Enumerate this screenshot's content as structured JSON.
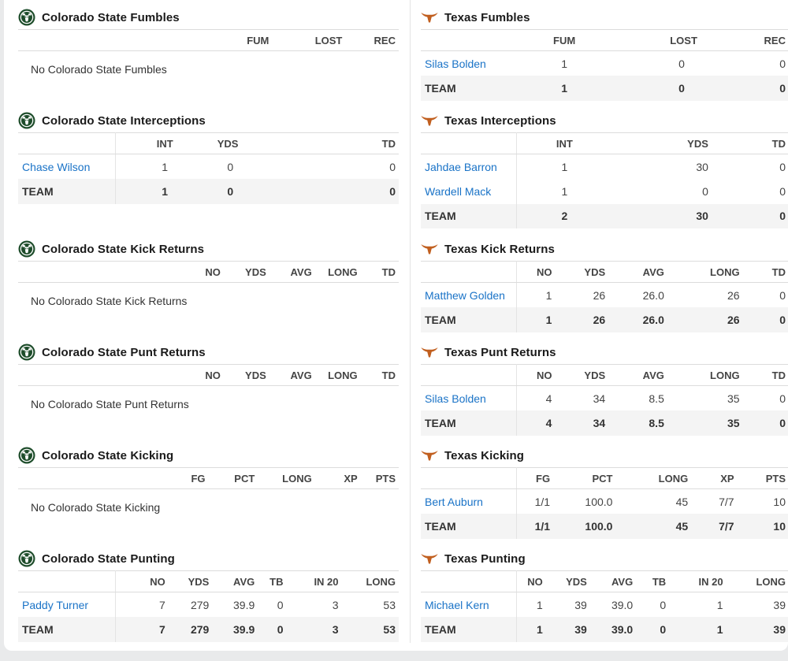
{
  "colorado": {
    "fumbles": {
      "title": "Colorado State Fumbles",
      "headers": [
        "FUM",
        "LOST",
        "REC"
      ],
      "empty": "No Colorado State Fumbles"
    },
    "interceptions": {
      "title": "Colorado State Interceptions",
      "headers": [
        "INT",
        "YDS",
        "TD"
      ],
      "rows": [
        {
          "name": "Chase Wilson",
          "vals": [
            "1",
            "0",
            "0"
          ]
        }
      ],
      "team": {
        "name": "TEAM",
        "vals": [
          "1",
          "0",
          "0"
        ]
      }
    },
    "kick_returns": {
      "title": "Colorado State Kick Returns",
      "headers": [
        "NO",
        "YDS",
        "AVG",
        "LONG",
        "TD"
      ],
      "empty": "No Colorado State Kick Returns"
    },
    "punt_returns": {
      "title": "Colorado State Punt Returns",
      "headers": [
        "NO",
        "YDS",
        "AVG",
        "LONG",
        "TD"
      ],
      "empty": "No Colorado State Punt Returns"
    },
    "kicking": {
      "title": "Colorado State Kicking",
      "headers": [
        "FG",
        "PCT",
        "LONG",
        "XP",
        "PTS"
      ],
      "empty": "No Colorado State Kicking"
    },
    "punting": {
      "title": "Colorado State Punting",
      "headers": [
        "NO",
        "YDS",
        "AVG",
        "TB",
        "IN 20",
        "LONG"
      ],
      "rows": [
        {
          "name": "Paddy Turner",
          "vals": [
            "7",
            "279",
            "39.9",
            "0",
            "3",
            "53"
          ]
        }
      ],
      "team": {
        "name": "TEAM",
        "vals": [
          "7",
          "279",
          "39.9",
          "0",
          "3",
          "53"
        ]
      }
    }
  },
  "texas": {
    "fumbles": {
      "title": "Texas Fumbles",
      "headers": [
        "FUM",
        "LOST",
        "REC"
      ],
      "rows": [
        {
          "name": "Silas Bolden",
          "vals": [
            "1",
            "0",
            "0"
          ]
        }
      ],
      "team": {
        "name": "TEAM",
        "vals": [
          "1",
          "0",
          "0"
        ]
      }
    },
    "interceptions": {
      "title": "Texas Interceptions",
      "headers": [
        "INT",
        "YDS",
        "TD"
      ],
      "rows": [
        {
          "name": "Jahdae Barron",
          "vals": [
            "1",
            "30",
            "0"
          ]
        },
        {
          "name": "Wardell Mack",
          "vals": [
            "1",
            "0",
            "0"
          ]
        }
      ],
      "team": {
        "name": "TEAM",
        "vals": [
          "2",
          "30",
          "0"
        ]
      }
    },
    "kick_returns": {
      "title": "Texas Kick Returns",
      "headers": [
        "NO",
        "YDS",
        "AVG",
        "LONG",
        "TD"
      ],
      "rows": [
        {
          "name": "Matthew Golden",
          "vals": [
            "1",
            "26",
            "26.0",
            "26",
            "0"
          ]
        }
      ],
      "team": {
        "name": "TEAM",
        "vals": [
          "1",
          "26",
          "26.0",
          "26",
          "0"
        ]
      }
    },
    "punt_returns": {
      "title": "Texas Punt Returns",
      "headers": [
        "NO",
        "YDS",
        "AVG",
        "LONG",
        "TD"
      ],
      "rows": [
        {
          "name": "Silas Bolden",
          "vals": [
            "4",
            "34",
            "8.5",
            "35",
            "0"
          ]
        }
      ],
      "team": {
        "name": "TEAM",
        "vals": [
          "4",
          "34",
          "8.5",
          "35",
          "0"
        ]
      }
    },
    "kicking": {
      "title": "Texas Kicking",
      "headers": [
        "FG",
        "PCT",
        "LONG",
        "XP",
        "PTS"
      ],
      "rows": [
        {
          "name": "Bert Auburn",
          "vals": [
            "1/1",
            "100.0",
            "45",
            "7/7",
            "10"
          ]
        }
      ],
      "team": {
        "name": "TEAM",
        "vals": [
          "1/1",
          "100.0",
          "45",
          "7/7",
          "10"
        ]
      }
    },
    "punting": {
      "title": "Texas Punting",
      "headers": [
        "NO",
        "YDS",
        "AVG",
        "TB",
        "IN 20",
        "LONG"
      ],
      "rows": [
        {
          "name": "Michael Kern",
          "vals": [
            "1",
            "39",
            "39.0",
            "0",
            "1",
            "39"
          ]
        }
      ],
      "team": {
        "name": "TEAM",
        "vals": [
          "1",
          "39",
          "39.0",
          "0",
          "1",
          "39"
        ]
      }
    }
  },
  "colors": {
    "link": "#1a73c7",
    "csu_green": "#1e4d2b",
    "texas_orange": "#c15f1f"
  },
  "icons": {
    "colorado": "csu-ram-logo-icon",
    "texas": "texas-longhorn-logo-icon"
  }
}
